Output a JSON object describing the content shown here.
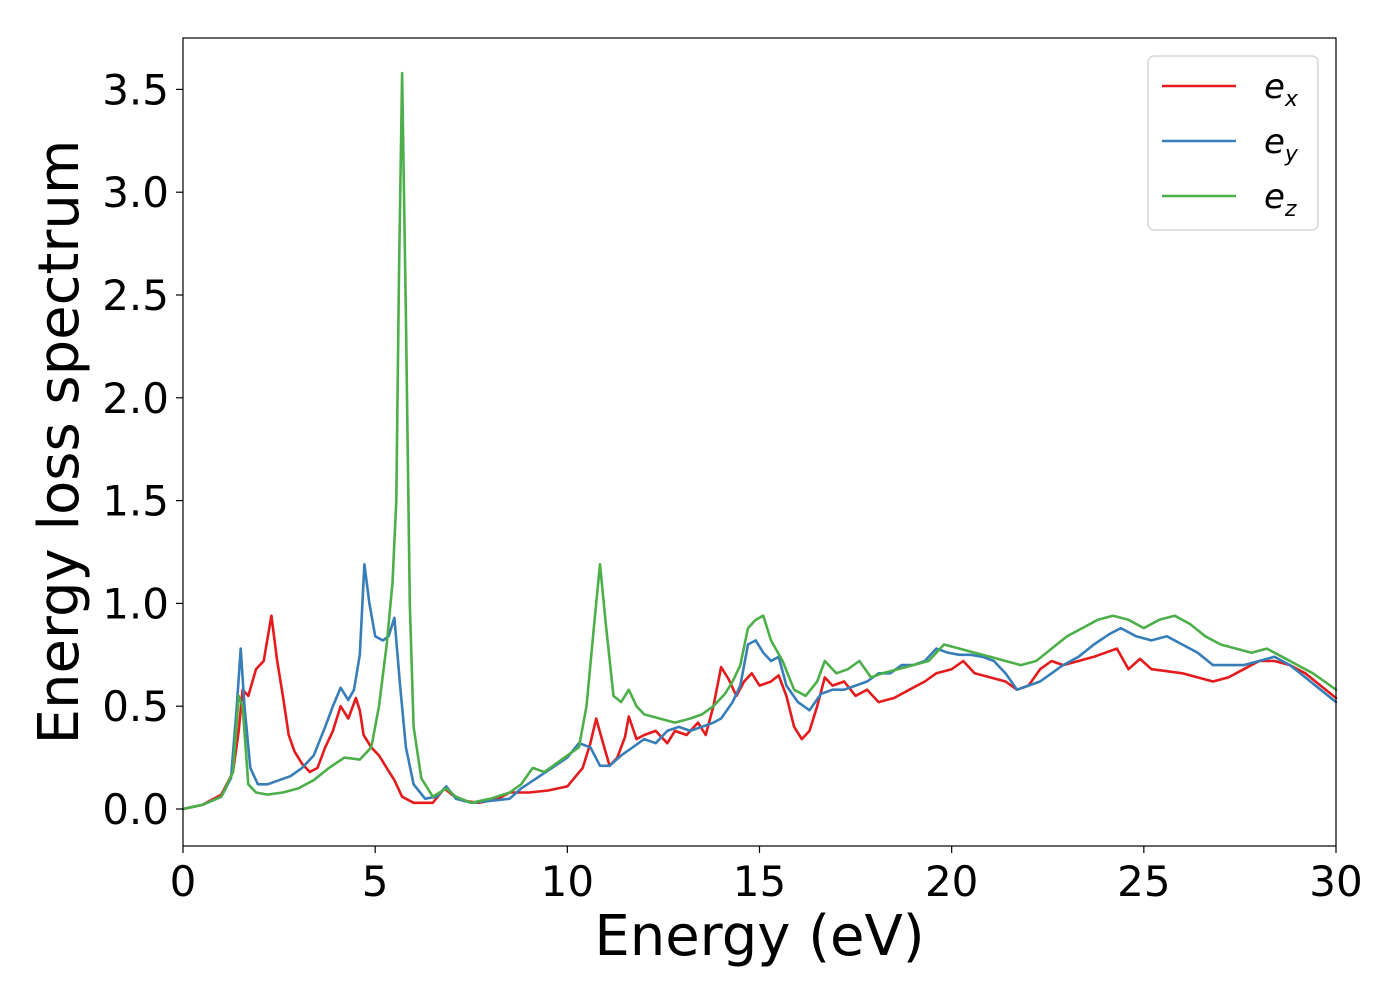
{
  "chart_data": {
    "type": "line",
    "title": "",
    "xlabel": "Energy (eV)",
    "ylabel": "Energy loss spectrum",
    "xlim": [
      0,
      30
    ],
    "ylim": [
      -0.18,
      3.75
    ],
    "xticks": [
      0,
      5,
      10,
      15,
      20,
      25,
      30
    ],
    "yticks": [
      0.0,
      0.5,
      1.0,
      1.5,
      2.0,
      2.5,
      3.0,
      3.5
    ],
    "xtick_labels": [
      "0",
      "5",
      "10",
      "15",
      "20",
      "25",
      "30"
    ],
    "ytick_labels": [
      "0.0",
      "0.5",
      "1.0",
      "1.5",
      "2.0",
      "2.5",
      "3.0",
      "3.5"
    ],
    "grid": false,
    "legend_position": "top-right",
    "series": [
      {
        "name": "e_x",
        "legend_base": "e",
        "legend_sub": "x",
        "color": "#e41a1c",
        "points": [
          [
            0,
            0
          ],
          [
            0.5,
            0.02
          ],
          [
            1.0,
            0.07
          ],
          [
            1.3,
            0.18
          ],
          [
            1.45,
            0.38
          ],
          [
            1.55,
            0.58
          ],
          [
            1.7,
            0.55
          ],
          [
            1.9,
            0.68
          ],
          [
            2.1,
            0.72
          ],
          [
            2.3,
            0.94
          ],
          [
            2.45,
            0.72
          ],
          [
            2.6,
            0.55
          ],
          [
            2.75,
            0.36
          ],
          [
            2.9,
            0.28
          ],
          [
            3.1,
            0.22
          ],
          [
            3.3,
            0.18
          ],
          [
            3.5,
            0.2
          ],
          [
            3.7,
            0.3
          ],
          [
            3.9,
            0.38
          ],
          [
            4.1,
            0.5
          ],
          [
            4.3,
            0.44
          ],
          [
            4.5,
            0.54
          ],
          [
            4.6,
            0.48
          ],
          [
            4.7,
            0.36
          ],
          [
            4.9,
            0.3
          ],
          [
            5.1,
            0.26
          ],
          [
            5.3,
            0.2
          ],
          [
            5.5,
            0.14
          ],
          [
            5.7,
            0.06
          ],
          [
            6.0,
            0.03
          ],
          [
            6.5,
            0.03
          ],
          [
            6.8,
            0.1
          ],
          [
            7.0,
            0.07
          ],
          [
            7.3,
            0.04
          ],
          [
            7.7,
            0.03
          ],
          [
            8.2,
            0.05
          ],
          [
            8.5,
            0.08
          ],
          [
            9.0,
            0.08
          ],
          [
            9.5,
            0.09
          ],
          [
            10.0,
            0.11
          ],
          [
            10.4,
            0.2
          ],
          [
            10.6,
            0.32
          ],
          [
            10.75,
            0.44
          ],
          [
            10.9,
            0.34
          ],
          [
            11.1,
            0.21
          ],
          [
            11.3,
            0.25
          ],
          [
            11.5,
            0.35
          ],
          [
            11.6,
            0.45
          ],
          [
            11.8,
            0.34
          ],
          [
            12.0,
            0.36
          ],
          [
            12.3,
            0.38
          ],
          [
            12.6,
            0.32
          ],
          [
            12.8,
            0.38
          ],
          [
            13.1,
            0.36
          ],
          [
            13.4,
            0.42
          ],
          [
            13.6,
            0.36
          ],
          [
            13.8,
            0.5
          ],
          [
            14.0,
            0.69
          ],
          [
            14.2,
            0.63
          ],
          [
            14.4,
            0.55
          ],
          [
            14.6,
            0.62
          ],
          [
            14.8,
            0.66
          ],
          [
            15.0,
            0.6
          ],
          [
            15.3,
            0.62
          ],
          [
            15.5,
            0.65
          ],
          [
            15.7,
            0.55
          ],
          [
            15.9,
            0.4
          ],
          [
            16.1,
            0.34
          ],
          [
            16.3,
            0.38
          ],
          [
            16.5,
            0.5
          ],
          [
            16.7,
            0.64
          ],
          [
            16.9,
            0.6
          ],
          [
            17.2,
            0.62
          ],
          [
            17.5,
            0.55
          ],
          [
            17.8,
            0.58
          ],
          [
            18.1,
            0.52
          ],
          [
            18.5,
            0.54
          ],
          [
            18.9,
            0.58
          ],
          [
            19.3,
            0.62
          ],
          [
            19.6,
            0.66
          ],
          [
            20.0,
            0.68
          ],
          [
            20.3,
            0.72
          ],
          [
            20.6,
            0.66
          ],
          [
            21.0,
            0.64
          ],
          [
            21.4,
            0.62
          ],
          [
            21.7,
            0.58
          ],
          [
            22.0,
            0.6
          ],
          [
            22.3,
            0.68
          ],
          [
            22.6,
            0.72
          ],
          [
            22.9,
            0.7
          ],
          [
            23.3,
            0.72
          ],
          [
            23.7,
            0.74
          ],
          [
            24.0,
            0.76
          ],
          [
            24.3,
            0.78
          ],
          [
            24.6,
            0.68
          ],
          [
            24.9,
            0.73
          ],
          [
            25.2,
            0.68
          ],
          [
            25.6,
            0.67
          ],
          [
            26.0,
            0.66
          ],
          [
            26.4,
            0.64
          ],
          [
            26.8,
            0.62
          ],
          [
            27.2,
            0.64
          ],
          [
            27.6,
            0.68
          ],
          [
            28.0,
            0.72
          ],
          [
            28.4,
            0.72
          ],
          [
            28.8,
            0.7
          ],
          [
            29.2,
            0.66
          ],
          [
            29.6,
            0.6
          ],
          [
            30.0,
            0.54
          ]
        ]
      },
      {
        "name": "e_y",
        "legend_base": "e",
        "legend_sub": "y",
        "color": "#377eb8",
        "points": [
          [
            0,
            0
          ],
          [
            0.5,
            0.02
          ],
          [
            1.0,
            0.06
          ],
          [
            1.25,
            0.15
          ],
          [
            1.4,
            0.5
          ],
          [
            1.5,
            0.78
          ],
          [
            1.6,
            0.5
          ],
          [
            1.75,
            0.2
          ],
          [
            1.95,
            0.12
          ],
          [
            2.2,
            0.12
          ],
          [
            2.5,
            0.14
          ],
          [
            2.8,
            0.16
          ],
          [
            3.1,
            0.2
          ],
          [
            3.4,
            0.26
          ],
          [
            3.7,
            0.4
          ],
          [
            3.9,
            0.5
          ],
          [
            4.1,
            0.59
          ],
          [
            4.3,
            0.53
          ],
          [
            4.45,
            0.58
          ],
          [
            4.6,
            0.75
          ],
          [
            4.72,
            1.19
          ],
          [
            4.85,
            1.0
          ],
          [
            5.0,
            0.84
          ],
          [
            5.2,
            0.82
          ],
          [
            5.35,
            0.84
          ],
          [
            5.5,
            0.93
          ],
          [
            5.65,
            0.6
          ],
          [
            5.8,
            0.3
          ],
          [
            6.0,
            0.12
          ],
          [
            6.3,
            0.05
          ],
          [
            6.6,
            0.06
          ],
          [
            6.85,
            0.11
          ],
          [
            7.1,
            0.05
          ],
          [
            7.5,
            0.03
          ],
          [
            8.0,
            0.04
          ],
          [
            8.5,
            0.05
          ],
          [
            8.8,
            0.1
          ],
          [
            9.2,
            0.15
          ],
          [
            9.6,
            0.2
          ],
          [
            10.0,
            0.25
          ],
          [
            10.3,
            0.32
          ],
          [
            10.6,
            0.3
          ],
          [
            10.85,
            0.21
          ],
          [
            11.1,
            0.21
          ],
          [
            11.4,
            0.26
          ],
          [
            11.7,
            0.3
          ],
          [
            12.0,
            0.34
          ],
          [
            12.3,
            0.32
          ],
          [
            12.6,
            0.38
          ],
          [
            12.9,
            0.4
          ],
          [
            13.2,
            0.38
          ],
          [
            13.5,
            0.4
          ],
          [
            13.8,
            0.42
          ],
          [
            14.0,
            0.44
          ],
          [
            14.3,
            0.52
          ],
          [
            14.5,
            0.6
          ],
          [
            14.7,
            0.8
          ],
          [
            14.9,
            0.82
          ],
          [
            15.1,
            0.76
          ],
          [
            15.3,
            0.72
          ],
          [
            15.5,
            0.74
          ],
          [
            15.7,
            0.6
          ],
          [
            16.0,
            0.52
          ],
          [
            16.3,
            0.48
          ],
          [
            16.6,
            0.56
          ],
          [
            16.9,
            0.58
          ],
          [
            17.2,
            0.58
          ],
          [
            17.5,
            0.6
          ],
          [
            17.8,
            0.62
          ],
          [
            18.1,
            0.66
          ],
          [
            18.4,
            0.66
          ],
          [
            18.7,
            0.7
          ],
          [
            19.0,
            0.7
          ],
          [
            19.3,
            0.72
          ],
          [
            19.6,
            0.78
          ],
          [
            19.9,
            0.76
          ],
          [
            20.2,
            0.75
          ],
          [
            20.5,
            0.75
          ],
          [
            20.8,
            0.74
          ],
          [
            21.1,
            0.72
          ],
          [
            21.4,
            0.66
          ],
          [
            21.7,
            0.58
          ],
          [
            22.0,
            0.6
          ],
          [
            22.3,
            0.62
          ],
          [
            22.6,
            0.66
          ],
          [
            22.9,
            0.7
          ],
          [
            23.3,
            0.74
          ],
          [
            23.7,
            0.8
          ],
          [
            24.1,
            0.85
          ],
          [
            24.4,
            0.88
          ],
          [
            24.8,
            0.84
          ],
          [
            25.2,
            0.82
          ],
          [
            25.6,
            0.84
          ],
          [
            26.0,
            0.8
          ],
          [
            26.4,
            0.76
          ],
          [
            26.8,
            0.7
          ],
          [
            27.2,
            0.7
          ],
          [
            27.6,
            0.7
          ],
          [
            28.0,
            0.72
          ],
          [
            28.4,
            0.74
          ],
          [
            28.8,
            0.7
          ],
          [
            29.2,
            0.64
          ],
          [
            29.6,
            0.58
          ],
          [
            30.0,
            0.52
          ]
        ]
      },
      {
        "name": "e_z",
        "legend_base": "e",
        "legend_sub": "z",
        "color": "#4daf4a",
        "points": [
          [
            0,
            0
          ],
          [
            0.5,
            0.02
          ],
          [
            1.0,
            0.06
          ],
          [
            1.3,
            0.18
          ],
          [
            1.45,
            0.55
          ],
          [
            1.55,
            0.5
          ],
          [
            1.7,
            0.12
          ],
          [
            1.9,
            0.08
          ],
          [
            2.2,
            0.07
          ],
          [
            2.6,
            0.08
          ],
          [
            3.0,
            0.1
          ],
          [
            3.4,
            0.14
          ],
          [
            3.8,
            0.2
          ],
          [
            4.2,
            0.25
          ],
          [
            4.6,
            0.24
          ],
          [
            4.9,
            0.3
          ],
          [
            5.1,
            0.5
          ],
          [
            5.3,
            0.8
          ],
          [
            5.45,
            1.1
          ],
          [
            5.55,
            1.5
          ],
          [
            5.62,
            2.6
          ],
          [
            5.7,
            3.58
          ],
          [
            5.8,
            2.4
          ],
          [
            5.9,
            1.0
          ],
          [
            6.0,
            0.4
          ],
          [
            6.2,
            0.15
          ],
          [
            6.5,
            0.06
          ],
          [
            6.85,
            0.1
          ],
          [
            7.1,
            0.06
          ],
          [
            7.5,
            0.03
          ],
          [
            8.0,
            0.05
          ],
          [
            8.5,
            0.08
          ],
          [
            8.8,
            0.12
          ],
          [
            9.1,
            0.2
          ],
          [
            9.4,
            0.18
          ],
          [
            9.7,
            0.22
          ],
          [
            10.0,
            0.26
          ],
          [
            10.3,
            0.3
          ],
          [
            10.5,
            0.5
          ],
          [
            10.7,
            0.9
          ],
          [
            10.85,
            1.19
          ],
          [
            11.0,
            0.9
          ],
          [
            11.2,
            0.55
          ],
          [
            11.4,
            0.52
          ],
          [
            11.6,
            0.58
          ],
          [
            11.8,
            0.5
          ],
          [
            12.0,
            0.46
          ],
          [
            12.4,
            0.44
          ],
          [
            12.8,
            0.42
          ],
          [
            13.2,
            0.44
          ],
          [
            13.5,
            0.46
          ],
          [
            13.8,
            0.5
          ],
          [
            14.1,
            0.56
          ],
          [
            14.3,
            0.62
          ],
          [
            14.5,
            0.7
          ],
          [
            14.7,
            0.88
          ],
          [
            14.9,
            0.92
          ],
          [
            15.1,
            0.94
          ],
          [
            15.3,
            0.82
          ],
          [
            15.6,
            0.72
          ],
          [
            15.9,
            0.58
          ],
          [
            16.2,
            0.55
          ],
          [
            16.5,
            0.62
          ],
          [
            16.7,
            0.72
          ],
          [
            17.0,
            0.66
          ],
          [
            17.3,
            0.68
          ],
          [
            17.6,
            0.72
          ],
          [
            17.9,
            0.64
          ],
          [
            18.2,
            0.66
          ],
          [
            18.6,
            0.68
          ],
          [
            19.0,
            0.7
          ],
          [
            19.4,
            0.72
          ],
          [
            19.8,
            0.8
          ],
          [
            20.2,
            0.78
          ],
          [
            20.6,
            0.76
          ],
          [
            21.0,
            0.74
          ],
          [
            21.4,
            0.72
          ],
          [
            21.8,
            0.7
          ],
          [
            22.2,
            0.72
          ],
          [
            22.6,
            0.78
          ],
          [
            23.0,
            0.84
          ],
          [
            23.4,
            0.88
          ],
          [
            23.8,
            0.92
          ],
          [
            24.2,
            0.94
          ],
          [
            24.6,
            0.92
          ],
          [
            25.0,
            0.88
          ],
          [
            25.4,
            0.92
          ],
          [
            25.8,
            0.94
          ],
          [
            26.2,
            0.9
          ],
          [
            26.6,
            0.84
          ],
          [
            27.0,
            0.8
          ],
          [
            27.4,
            0.78
          ],
          [
            27.8,
            0.76
          ],
          [
            28.2,
            0.78
          ],
          [
            28.6,
            0.74
          ],
          [
            29.0,
            0.7
          ],
          [
            29.4,
            0.66
          ],
          [
            29.7,
            0.62
          ],
          [
            30.0,
            0.58
          ]
        ]
      }
    ]
  }
}
